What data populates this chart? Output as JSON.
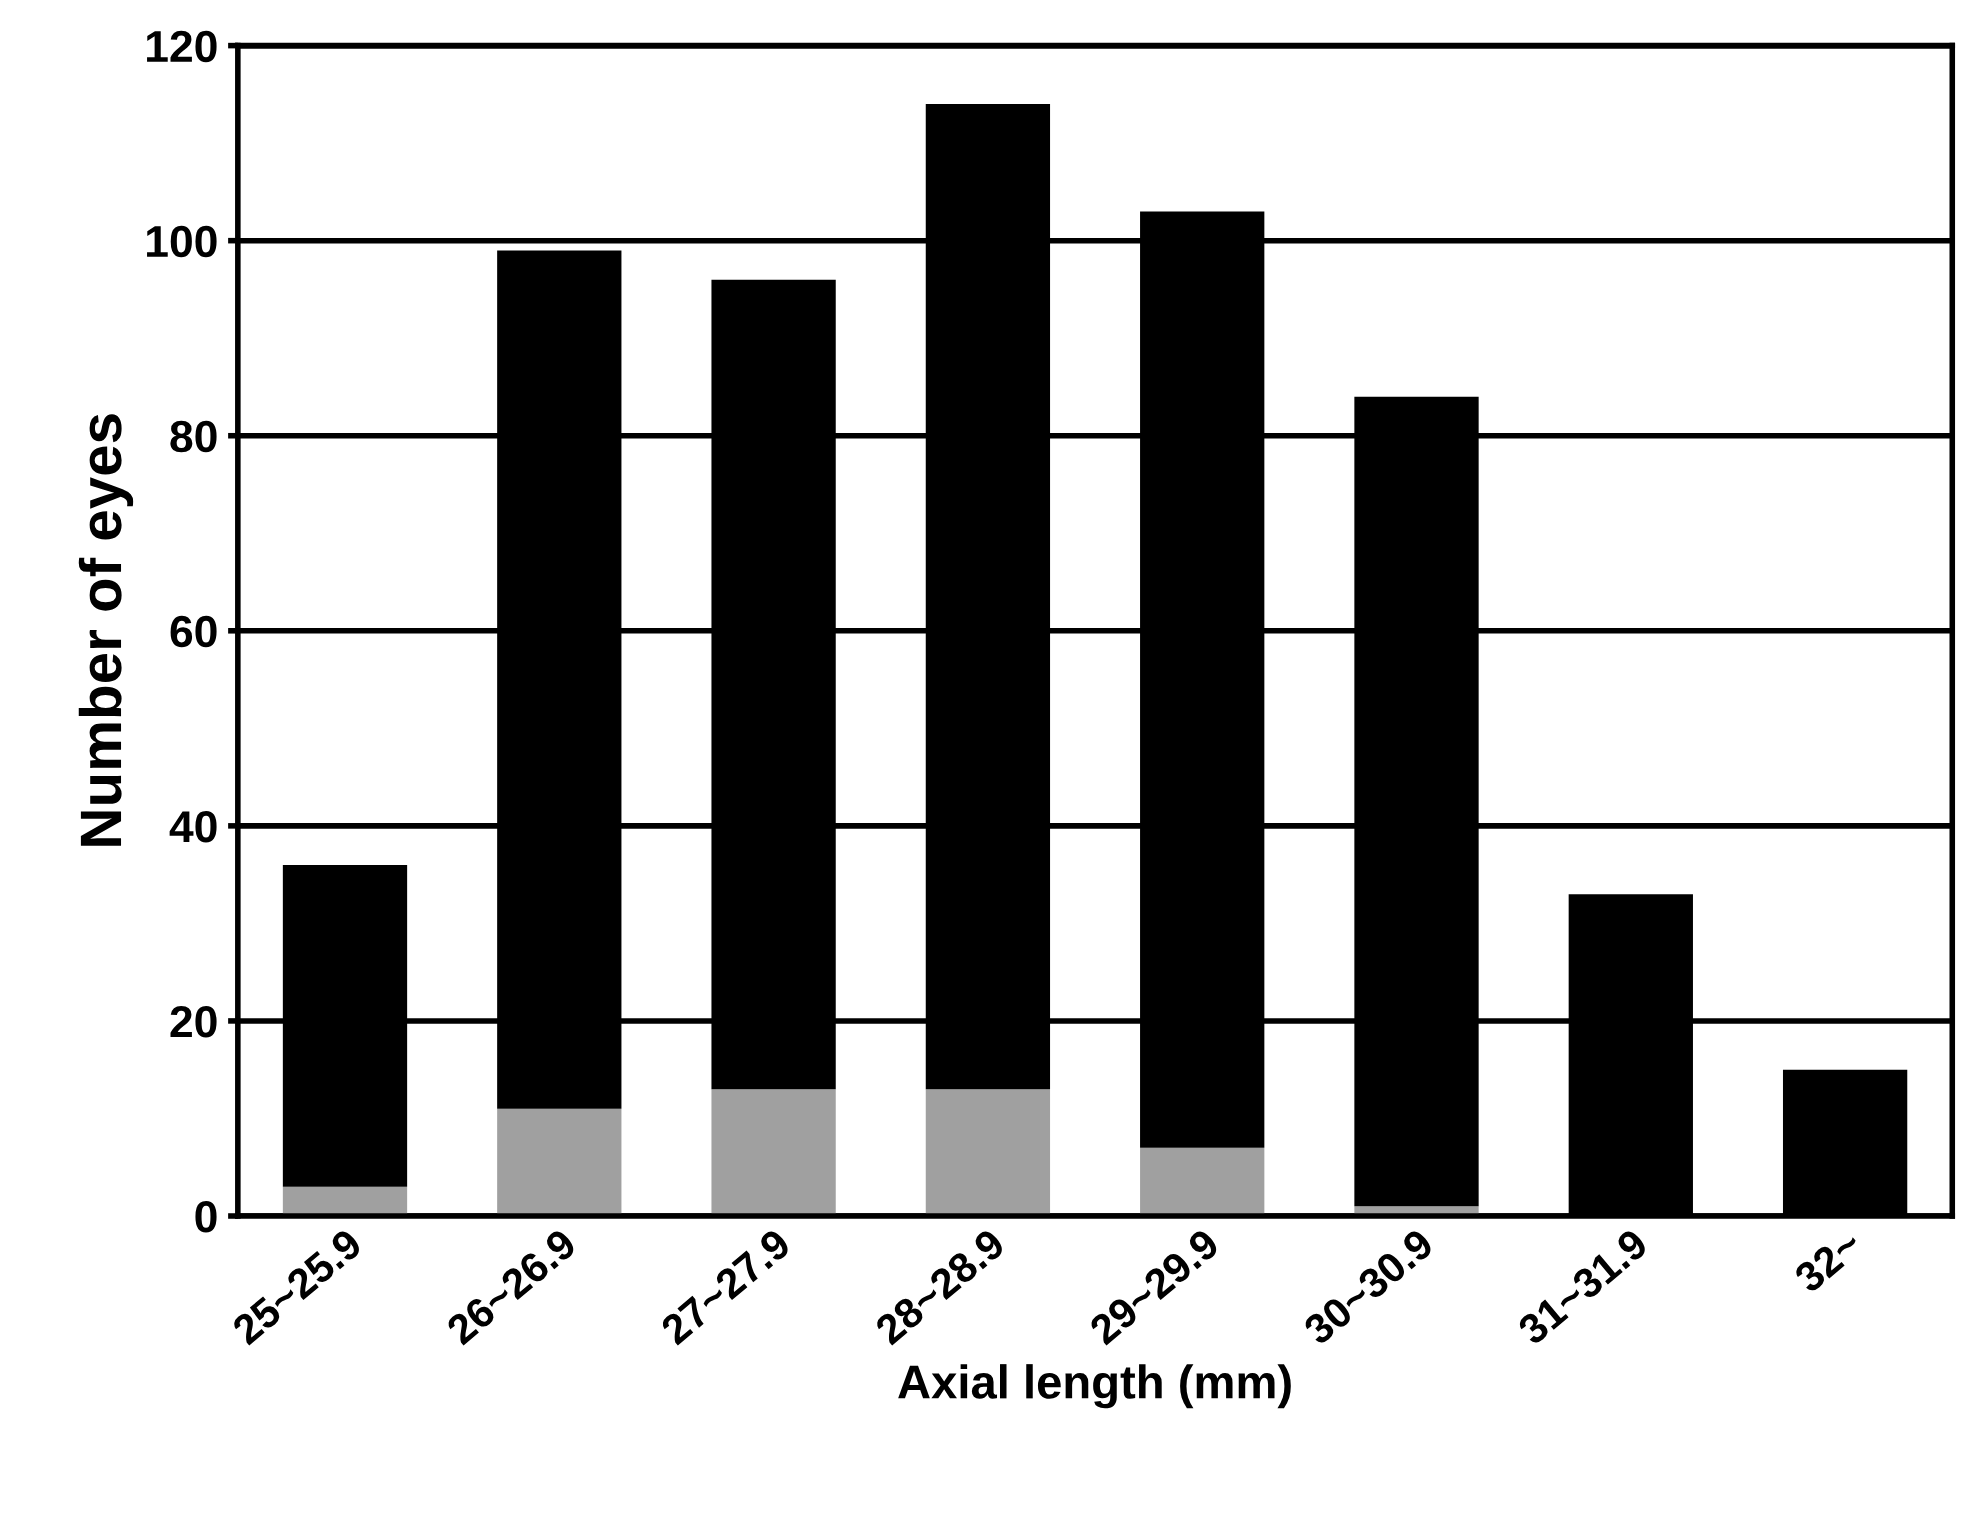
{
  "chart_data": {
    "type": "bar",
    "stacked": true,
    "xlabel": "Axial length (mm)",
    "ylabel": "Number of eyes",
    "categories": [
      "25~25.9",
      "26~26.9",
      "27~27.9",
      "28~28.9",
      "29~29.9",
      "30~30.9",
      "31~31.9",
      "32~"
    ],
    "series": [
      {
        "color": "#a0a0a0",
        "values": [
          3,
          11,
          13,
          13,
          7,
          1,
          0,
          0
        ]
      },
      {
        "color": "#000000",
        "values": [
          33,
          88,
          83,
          101,
          96,
          83,
          33,
          15
        ]
      }
    ],
    "ylim": [
      0,
      120
    ],
    "yticks": [
      0,
      20,
      40,
      60,
      80,
      100,
      120
    ],
    "grid": "y"
  }
}
